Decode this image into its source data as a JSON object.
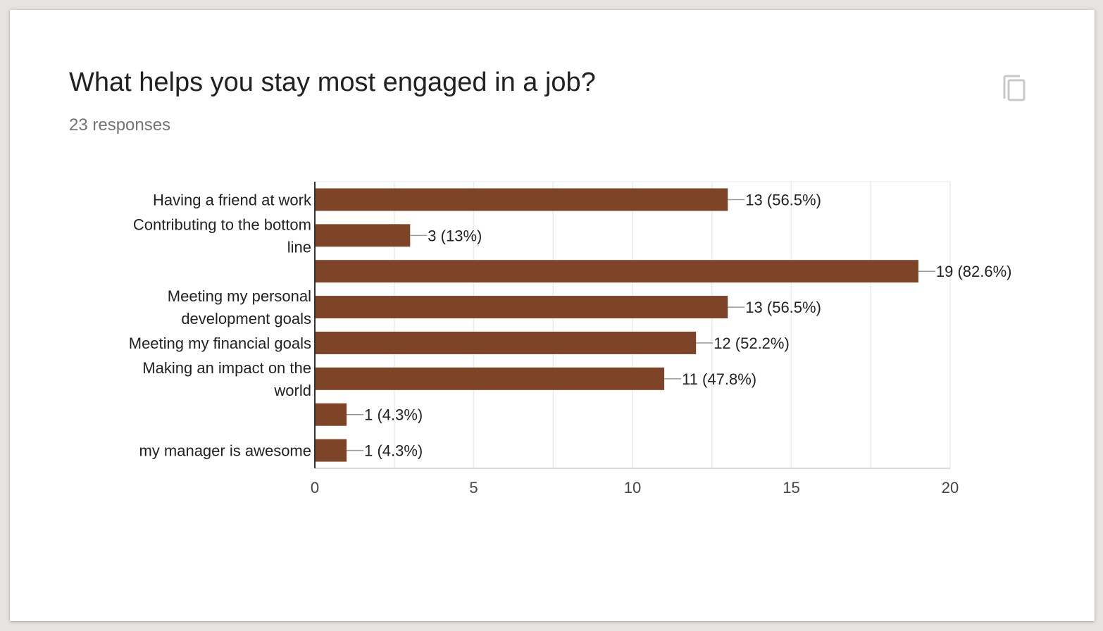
{
  "header": {
    "title": "What helps you stay most engaged in a job?",
    "responses": "23 responses"
  },
  "icons": {
    "copy": "copy-icon"
  },
  "colors": {
    "bar": "#7d4427",
    "grid": "#ebebeb",
    "axis": "#333333"
  },
  "chart_data": {
    "type": "bar",
    "orientation": "horizontal",
    "categories": [
      "Having a friend at work",
      "Contributing to the bottom line",
      "",
      "Meeting my personal development goals",
      "Meeting my financial goals",
      "Making an impact on the world",
      "",
      "my manager is awesome"
    ],
    "category_lines": [
      [
        "Having a friend at work"
      ],
      [
        "Contributing to the bottom",
        "line"
      ],
      [],
      [
        "Meeting my personal",
        "development goals"
      ],
      [
        "Meeting my financial goals"
      ],
      [
        "Making an impact on the",
        "world"
      ],
      [],
      [
        "my manager is awesome"
      ]
    ],
    "values": [
      13,
      3,
      19,
      13,
      12,
      11,
      1,
      1
    ],
    "value_labels": [
      "13 (56.5%)",
      "3 (13%)",
      "19 (82.6%)",
      "13 (56.5%)",
      "12 (52.2%)",
      "11 (47.8%)",
      "1 (4.3%)",
      "1 (4.3%)"
    ],
    "xlim": [
      0,
      20
    ],
    "xticks": [
      0,
      5,
      10,
      15,
      20
    ],
    "grid": true,
    "legend": "none"
  }
}
